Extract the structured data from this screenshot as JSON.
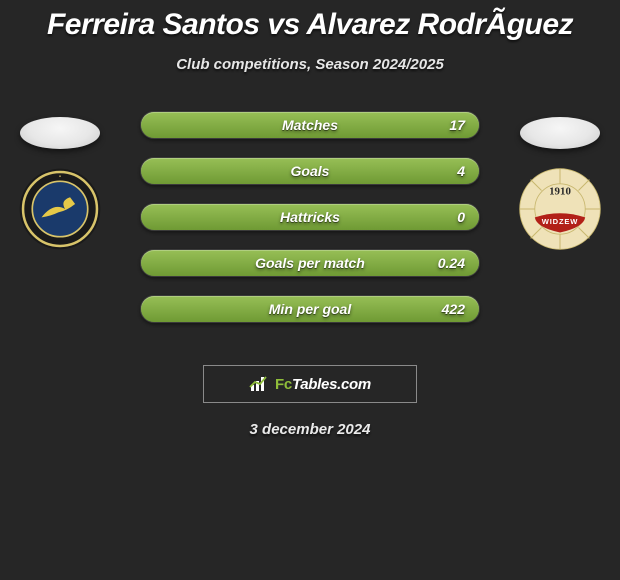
{
  "title": "Ferreira Santos vs Alvarez RodrÃ­guez",
  "subtitle": "Club competitions, Season 2024/2025",
  "date_text": "3 december 2024",
  "brand": {
    "prefix": "Fc",
    "suffix": "Tables.com"
  },
  "colors": {
    "background": "#262626",
    "bar_track_top": "#6a6a6a",
    "bar_track_bottom": "#525252",
    "bar_fill_top": "#97bf56",
    "bar_fill_bottom": "#6f9a34",
    "brand_green": "#8fbd3a"
  },
  "stats": [
    {
      "label": "Matches",
      "value": "17",
      "fill_pct": 100
    },
    {
      "label": "Goals",
      "value": "4",
      "fill_pct": 100
    },
    {
      "label": "Hattricks",
      "value": "0",
      "fill_pct": 100
    },
    {
      "label": "Goals per match",
      "value": "0.24",
      "fill_pct": 100
    },
    {
      "label": "Min per goal",
      "value": "422",
      "fill_pct": 100
    }
  ],
  "crests": {
    "left": {
      "outer_ring": "#1a1a1a",
      "inner_ring": "#d8c46a",
      "inner_bg": "#1a3a6b",
      "accent": "#e6c948"
    },
    "right": {
      "outer": "#efe2b8",
      "ribbon": "#b22018",
      "year": "1910"
    }
  }
}
